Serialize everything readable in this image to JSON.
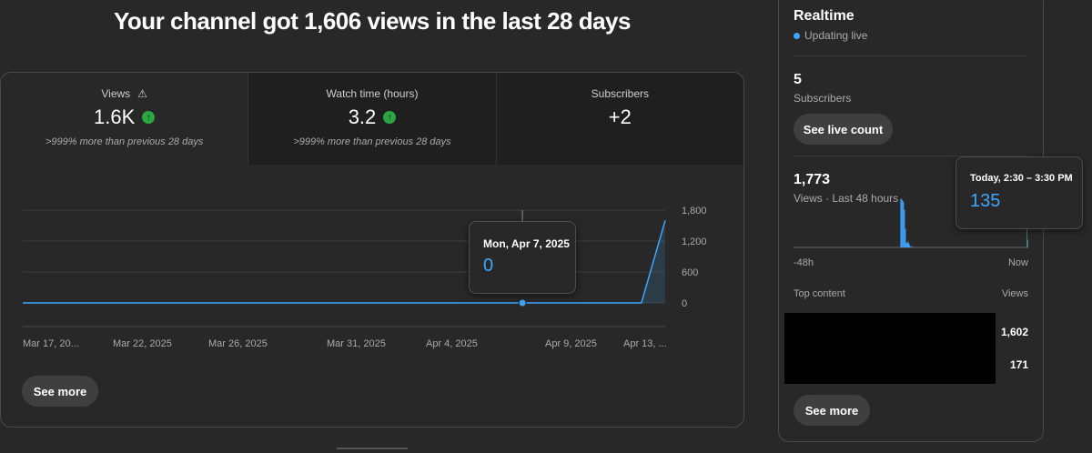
{
  "headline": "Your channel got 1,606 views in the last 28 days",
  "tabs": [
    {
      "label": "Views",
      "value": "1.6K",
      "sub": ">999% more than previous 28 days",
      "warning": true,
      "trend": "up",
      "selected": true
    },
    {
      "label": "Watch time (hours)",
      "value": "3.2",
      "sub": ">999% more than previous 28 days",
      "trend": "up",
      "selected": false
    },
    {
      "label": "Subscribers",
      "value": "+2",
      "sub": "",
      "selected": false
    }
  ],
  "chart_data": {
    "type": "line",
    "series": [
      {
        "values": [
          0,
          0,
          0,
          0,
          0,
          0,
          0,
          0,
          0,
          0,
          0,
          0,
          0,
          0,
          0,
          0,
          0,
          0,
          0,
          0,
          0,
          0,
          0,
          0,
          0,
          0,
          0,
          1600
        ]
      }
    ],
    "x_tick_labels": [
      "Mar 17, 20...",
      "Mar 22, 2025",
      "Mar 26, 2025",
      "Mar 31, 2025",
      "Apr 4, 2025",
      "Apr 9, 2025",
      "Apr 13, ..."
    ],
    "y_tick_labels": [
      "1,800",
      "1,200",
      "600",
      "0"
    ],
    "ylim": [
      0,
      1800
    ],
    "grid": true,
    "highlight_index": 21,
    "color": "#3ea6ff"
  },
  "chart_tooltip": {
    "date": "Mon, Apr 7, 2025",
    "value": "0"
  },
  "see_more_label": "See more",
  "realtime": {
    "title": "Realtime",
    "live_label": "Updating live",
    "subscribers_count": "5",
    "subscribers_label": "Subscribers",
    "live_count_button": "See live count",
    "views_count": "1,773",
    "views_label": "Views · Last 48 hours",
    "axis_start": "-48h",
    "axis_end": "Now",
    "hourly_views": [
      0,
      0,
      0,
      0,
      0,
      0,
      0,
      0,
      0,
      0,
      0,
      0,
      0,
      0,
      0,
      0,
      0,
      0,
      0,
      0,
      0,
      0,
      0,
      0,
      0,
      0,
      0,
      0,
      0,
      0,
      0,
      0,
      0,
      0,
      0,
      0,
      0,
      0,
      0,
      0,
      0,
      0,
      0,
      0,
      0,
      0,
      0,
      0,
      0,
      0,
      0,
      0,
      0,
      0,
      0,
      0,
      0,
      0,
      0,
      0,
      0,
      0,
      0,
      0,
      0,
      0,
      0,
      0,
      0,
      0,
      0,
      0,
      0,
      0,
      0,
      0,
      0,
      0,
      0,
      0,
      0,
      0,
      0,
      0,
      0,
      0,
      0,
      0,
      0,
      0,
      0,
      0,
      0,
      0,
      0,
      0,
      0,
      0,
      0,
      0,
      0,
      0,
      0,
      0,
      0,
      0,
      0,
      0,
      0,
      0,
      0,
      0,
      0,
      0,
      0,
      0,
      310,
      310,
      300,
      290,
      240,
      120,
      30,
      30,
      40,
      25,
      10,
      0,
      8,
      0,
      0,
      0,
      0,
      0,
      0,
      0,
      0,
      0,
      0,
      0,
      0,
      0,
      0,
      0,
      0,
      0,
      0,
      0,
      0,
      0,
      0,
      0,
      0,
      0,
      0,
      0,
      0,
      0,
      0,
      0,
      0,
      0,
      0,
      0,
      0,
      0,
      0,
      0,
      0,
      0,
      0,
      0,
      0,
      0,
      0,
      0,
      0,
      0,
      0,
      0,
      0,
      0,
      0,
      0,
      0,
      0,
      0,
      0,
      0,
      0,
      0,
      0,
      0,
      0,
      0,
      0,
      0,
      0,
      0,
      0,
      0,
      0,
      0,
      0,
      0,
      0,
      0,
      0,
      0,
      0,
      0,
      0,
      0,
      0,
      0,
      0,
      0,
      0,
      0,
      0,
      0,
      0,
      0,
      0,
      0,
      0,
      0,
      0,
      0,
      0,
      0,
      0,
      0,
      0,
      0,
      0,
      0,
      0,
      0,
      0,
      0,
      0,
      0,
      0,
      0,
      0,
      0,
      0,
      0,
      0,
      0,
      0,
      0,
      135,
      50
    ],
    "tooltip_time": "Today, 2:30 – 3:30 PM",
    "tooltip_value": "135",
    "top_content_label": "Top content",
    "views_column_label": "Views",
    "top_items": [
      {
        "views": "1,602"
      },
      {
        "views": "171"
      }
    ],
    "see_more_label": "See more"
  }
}
